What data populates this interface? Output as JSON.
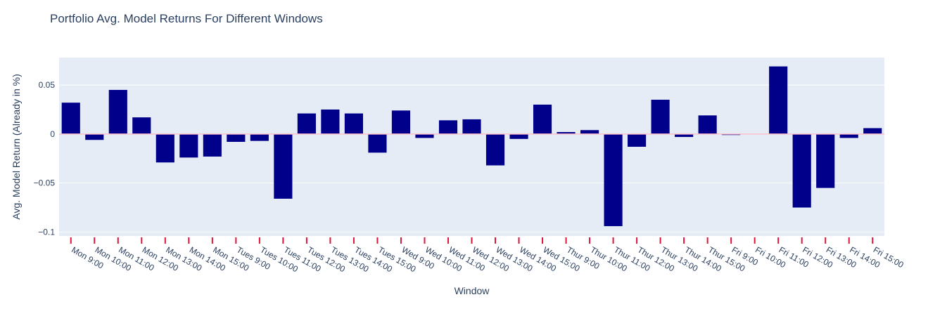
{
  "chart_data": {
    "type": "bar",
    "title": "Portfolio Avg. Model Returns For Different Windows",
    "xlabel": "Window",
    "ylabel": "Avg. Model Return (Already in %)",
    "ylim": [
      -0.104,
      0.078
    ],
    "yticks": [
      0.05,
      0,
      -0.05,
      -0.1
    ],
    "ytick_labels": [
      "0.05",
      "0",
      "−0.05",
      "−0.1"
    ],
    "grid": true,
    "categories": [
      "Mon 9:00",
      "Mon 10:00",
      "Mon 11:00",
      "Mon 12:00",
      "Mon 13:00",
      "Mon 14:00",
      "Mon 15:00",
      "Tues 9:00",
      "Tues 10:00",
      "Tues 11:00",
      "Tues 12:00",
      "Tues 13:00",
      "Tues 14:00",
      "Tues 15:00",
      "Wed 9:00",
      "Wed 10:00",
      "Wed 11:00",
      "Wed 12:00",
      "Wed 13:00",
      "Wed 14:00",
      "Wed 15:00",
      "Thur 9:00",
      "Thur 10:00",
      "Thur 11:00",
      "Thur 12:00",
      "Thur 13:00",
      "Thur 14:00",
      "Thur 15:00",
      "Fri 9:00",
      "Fri 10:00",
      "Fri 11:00",
      "Fri 12:00",
      "Fri 13:00",
      "Fri 14:00",
      "Fri 15:00"
    ],
    "values": [
      0.032,
      -0.006,
      0.045,
      0.017,
      -0.029,
      -0.024,
      -0.023,
      -0.008,
      -0.007,
      -0.066,
      0.021,
      0.025,
      0.021,
      -0.019,
      0.024,
      -0.004,
      0.014,
      0.015,
      -0.032,
      -0.005,
      0.03,
      0.002,
      0.004,
      -0.094,
      -0.013,
      0.035,
      -0.003,
      0.019,
      -0.001,
      0.0,
      0.069,
      -0.075,
      -0.055,
      -0.004,
      0.006
    ],
    "colors": {
      "bar": "#00008b",
      "plot_bg": "#e5ecf6",
      "grid": "#ffffff",
      "zero_line": "#ffc0cb",
      "tick_mark": "#dc143c",
      "text": "#2a3f5f"
    }
  }
}
